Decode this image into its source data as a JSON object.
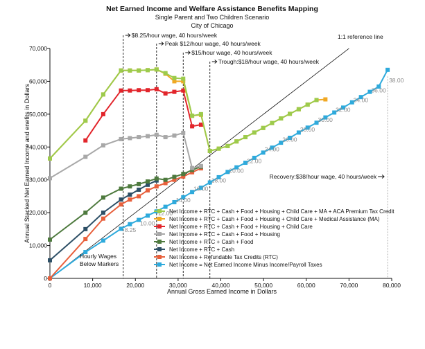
{
  "chart_data": {
    "type": "line",
    "title": "Net Earned Income and Welfare Assistance Benefits Mapping",
    "subtitle": "Single Parent and Two Children Scenario",
    "subtitle2": "City of Chicago",
    "xlabel": "Annual Gross Earned Income in Dollars",
    "ylabel": "Annual Stacked Net Earned Income and enefits in Dollars",
    "xlim": [
      0,
      80000
    ],
    "ylim": [
      0,
      70000
    ],
    "x_ticks": [
      0,
      10000,
      20000,
      30000,
      40000,
      50000,
      60000,
      70000,
      80000
    ],
    "x_tick_labels": [
      "0",
      "10,000",
      "20,000",
      "30,000",
      "40,000",
      "50,000",
      "60,000",
      "70,000",
      "80,000"
    ],
    "y_ticks": [
      0,
      10000,
      20000,
      30000,
      40000,
      50000,
      60000,
      70000
    ],
    "y_tick_labels": [
      "0",
      "10,000",
      "20,000",
      "30,000",
      "40,000",
      "50,000",
      "60,000",
      "70,000"
    ],
    "grid": false,
    "legend_position": "lower-right",
    "reference_line": {
      "label": "1:1 reference line",
      "from": [
        0,
        0
      ],
      "to": [
        80000,
        80000
      ],
      "color": "#111111"
    },
    "annotations": [
      {
        "text": "$8.25/hour wage, 40 hours/week",
        "x": 17160
      },
      {
        "text": "Peak $12/hour wage, 40 hours/week",
        "x": 24960
      },
      {
        "text": "$15/hour wage, 40 hours/week",
        "x": 31200
      },
      {
        "text": "Trough:$18/hour wage, 40 hours/week",
        "x": 37440
      },
      {
        "text": "Recovery:$38/hour wage, 40 hours/week",
        "x": 79040
      }
    ],
    "hourly_note": [
      "Hourly Wages",
      "Below Markers"
    ],
    "wage_labels": [
      {
        "text": "8.25",
        "x": 17160,
        "y": 15000
      },
      {
        "text": "10.00",
        "x": 20800,
        "y": 17000
      },
      {
        "text": "12.00",
        "x": 24960,
        "y": 20000
      },
      {
        "text": "14.00",
        "x": 29120,
        "y": 24000
      },
      {
        "text": "16.00",
        "x": 33280,
        "y": 27500
      },
      {
        "text": "18.00",
        "x": 37440,
        "y": 30000
      },
      {
        "text": "20.00",
        "x": 41600,
        "y": 33000
      },
      {
        "text": "22.00",
        "x": 45760,
        "y": 36000
      },
      {
        "text": "24.00",
        "x": 49920,
        "y": 39500
      },
      {
        "text": "26.00",
        "x": 54080,
        "y": 42500
      },
      {
        "text": "28.00",
        "x": 58240,
        "y": 45500
      },
      {
        "text": "30.00",
        "x": 62400,
        "y": 48500
      },
      {
        "text": "32.00",
        "x": 66560,
        "y": 51500
      },
      {
        "text": "34.00",
        "x": 70720,
        "y": 54500
      },
      {
        "text": "36.00",
        "x": 74880,
        "y": 57500
      },
      {
        "text": "38.00",
        "x": 79040,
        "y": 60500
      }
    ],
    "x": [
      0,
      8320,
      12480,
      16640,
      18720,
      20800,
      22880,
      24960,
      27040,
      29120,
      31200,
      33280,
      35360,
      37440,
      39520,
      41600,
      43680,
      45760,
      47840,
      49920,
      52000,
      54080,
      56160,
      58240,
      60320,
      62400,
      64480,
      66560,
      68640,
      70720,
      72800,
      74880,
      76960,
      79040
    ],
    "series": [
      {
        "name": "Net Income + RTC + Cash + Food + Housing + Child Care + MA + ACA Premium Tax Credit",
        "color": "#9ccb4c",
        "values": [
          36500,
          48000,
          56000,
          63300,
          63300,
          63300,
          63400,
          63600,
          62500,
          61000,
          60800,
          49500,
          50000,
          38800,
          39500,
          40300,
          41700,
          43000,
          44400,
          45800,
          47300,
          48700,
          50100,
          51500,
          52900,
          54300,
          null,
          null,
          null,
          null,
          null,
          null,
          null,
          null
        ]
      },
      {
        "name": "Net Income + RTC + Cash + Food + Housing + Child Care + Medical Assistance (MA)",
        "color": "#f0a824",
        "values": [
          36500,
          48000,
          56000,
          63300,
          63300,
          63300,
          63400,
          63600,
          62300,
          60000,
          60000,
          49500,
          49800,
          38800,
          39500,
          40300,
          41700,
          43000,
          44400,
          45800,
          47300,
          48700,
          50100,
          51500,
          52900,
          54300,
          54500,
          null,
          null,
          null,
          null,
          null,
          null,
          null
        ]
      },
      {
        "name": "Net Income + RTC + Cash + Food + Housing + Child Care",
        "color": "#e2252b",
        "values": [
          null,
          42000,
          50000,
          57200,
          57200,
          57300,
          57300,
          57600,
          56300,
          56800,
          57200,
          46300,
          46800,
          null,
          null,
          null,
          null,
          null,
          null,
          null,
          null,
          null,
          null,
          null,
          null,
          null,
          null,
          null,
          null,
          null,
          null,
          null,
          null,
          null
        ]
      },
      {
        "name": "Net Income + RTC + Cash + Food + Housing",
        "color": "#a8a8a8",
        "values": [
          30500,
          37000,
          40500,
          42400,
          42700,
          43000,
          43300,
          43700,
          43000,
          43500,
          44300,
          33600,
          34200,
          null,
          null,
          null,
          null,
          null,
          null,
          null,
          null,
          null,
          null,
          null,
          null,
          null,
          null,
          null,
          null,
          null,
          null,
          null,
          null,
          null
        ]
      },
      {
        "name": "Net Income + RTC + Cash + Food",
        "color": "#4e7a3e",
        "values": [
          11800,
          20000,
          24600,
          27300,
          28000,
          28700,
          29500,
          30400,
          30000,
          30900,
          31800,
          33000,
          34000,
          null,
          null,
          null,
          null,
          null,
          null,
          null,
          null,
          null,
          null,
          null,
          null,
          null,
          null,
          null,
          null,
          null,
          null,
          null,
          null,
          null
        ]
      },
      {
        "name": "Net Income + RTC + Cash",
        "color": "#2d4f66",
        "values": [
          5500,
          15000,
          20000,
          24000,
          25500,
          27000,
          28500,
          29800,
          null,
          null,
          null,
          null,
          null,
          null,
          null,
          null,
          null,
          null,
          null,
          null,
          null,
          null,
          null,
          null,
          null,
          null,
          null,
          null,
          null,
          null,
          null,
          null,
          null,
          null
        ]
      },
      {
        "name": "Net Income + Refundable Tax Credits (RTC)",
        "color": "#e8603c",
        "values": [
          0,
          12000,
          18200,
          22500,
          24000,
          25000,
          26800,
          28000,
          29000,
          30000,
          31000,
          32300,
          33500,
          null,
          null,
          null,
          null,
          null,
          null,
          null,
          null,
          null,
          null,
          null,
          null,
          null,
          null,
          null,
          null,
          null,
          null,
          null,
          null,
          null
        ]
      },
      {
        "name": "Net Income = Net Earned Income Minus Income/Payroll Taxes",
        "color": "#2eaadc",
        "values": [
          0,
          8000,
          11500,
          15100,
          16500,
          17800,
          19100,
          20400,
          21800,
          23200,
          24700,
          26300,
          27600,
          29200,
          30800,
          32400,
          33800,
          35200,
          36700,
          38300,
          39800,
          41300,
          42800,
          44400,
          45900,
          47400,
          49000,
          50500,
          52000,
          53600,
          55200,
          56800,
          58400,
          63500
        ]
      }
    ]
  }
}
